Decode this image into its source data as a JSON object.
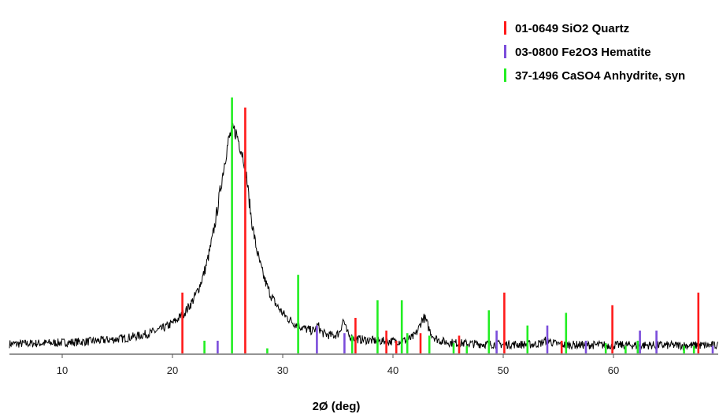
{
  "chart_data": {
    "type": "line",
    "title": "",
    "xlabel": "2Ø (deg)",
    "ylabel": "",
    "xlim": [
      5,
      69
    ],
    "ylim": [
      0,
      100
    ],
    "xticks": [
      10,
      20,
      30,
      40,
      50,
      60
    ],
    "grid": false,
    "legend_position": "top-right",
    "pattern": {
      "name": "",
      "color": "#000000",
      "baseline": 3,
      "peaks": [
        {
          "center": 25.5,
          "height": 84,
          "width": 1.9
        },
        {
          "center": 26.6,
          "height": 8,
          "width": 0.4
        },
        {
          "center": 35.5,
          "height": 7,
          "width": 0.25
        },
        {
          "center": 42.8,
          "height": 10,
          "width": 0.55
        },
        {
          "center": 33.2,
          "height": 3,
          "width": 0.2
        },
        {
          "center": 54.0,
          "height": 2,
          "width": 0.4
        }
      ]
    },
    "series": [
      {
        "name": "01-0649 SiO2 Quartz",
        "color": "#ff1a1a",
        "x": [
          20.9,
          26.6,
          36.6,
          39.4,
          40.3,
          42.5,
          46.0,
          50.1,
          55.3,
          59.9,
          67.7
        ],
        "y": [
          24,
          97,
          14,
          9,
          5,
          8,
          7,
          24,
          5,
          19,
          24
        ]
      },
      {
        "name": "03-0800 Fe2O3 Hematite",
        "color": "#7b4ddb",
        "x": [
          24.1,
          33.1,
          35.6,
          40.8,
          49.4,
          54.0,
          57.5,
          62.4,
          63.9,
          69.0
        ],
        "y": [
          5,
          11,
          8,
          3,
          9,
          11,
          5,
          9,
          9,
          3
        ]
      },
      {
        "name": "37-1496 CaSO4 Anhydrite, syn",
        "color": "#22ee22",
        "x": [
          22.9,
          25.4,
          28.6,
          31.4,
          36.3,
          38.6,
          40.8,
          41.3,
          43.3,
          45.5,
          46.7,
          48.7,
          52.2,
          55.7,
          59.3,
          61.1,
          62.2,
          66.4,
          67.3
        ],
        "y": [
          5,
          101,
          2,
          31,
          7,
          21,
          21,
          8,
          7,
          4,
          3,
          17,
          11,
          16,
          4,
          3,
          5,
          3,
          3
        ]
      }
    ]
  }
}
